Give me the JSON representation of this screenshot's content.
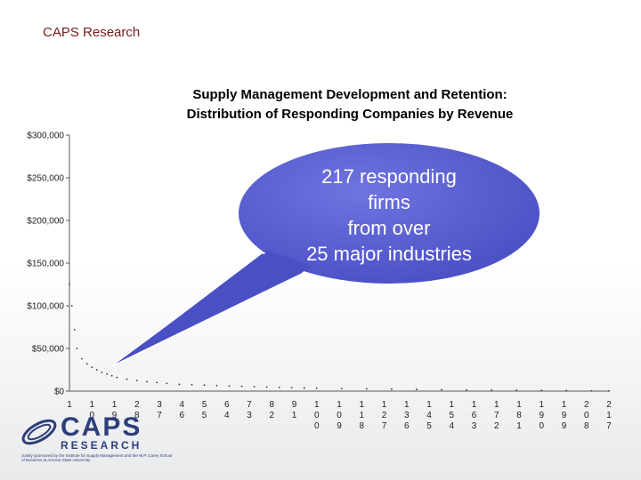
{
  "header": {
    "brand": "CAPS Research"
  },
  "callout": {
    "line1": "217 responding",
    "line2": "firms",
    "line3": "from over",
    "line4": "25 major industries"
  },
  "logo": {
    "word": "CAPS",
    "sub": "RESEARCH",
    "fine": "Jointly sponsored by the Institute for Supply Management and the W.P. Carey School of Business at Arizona State University"
  },
  "colors": {
    "bubble": "#4a4fc4",
    "header": "#7a1a1a",
    "logo": "#2c3e7b"
  },
  "chart_data": {
    "type": "scatter",
    "title": "Supply Management Development and Retention:",
    "subtitle": "Distribution of Responding Companies by Revenue",
    "xlabel": "",
    "ylabel": "",
    "ylim": [
      0,
      300000
    ],
    "y_ticks": [
      "$0",
      "$50,000",
      "$100,000",
      "$150,000",
      "$200,000",
      "$250,000",
      "$300,000"
    ],
    "y_tick_values": [
      0,
      50000,
      100000,
      150000,
      200000,
      250000,
      300000
    ],
    "xlim": [
      1,
      217
    ],
    "x_ticks": [
      "1",
      "10",
      "19",
      "28",
      "37",
      "46",
      "55",
      "64",
      "73",
      "82",
      "91",
      "100",
      "109",
      "118",
      "127",
      "136",
      "145",
      "154",
      "163",
      "172",
      "181",
      "190",
      "199",
      "208",
      "217"
    ],
    "x_tick_values": [
      1,
      10,
      19,
      28,
      37,
      46,
      55,
      64,
      73,
      82,
      91,
      100,
      109,
      118,
      127,
      136,
      145,
      154,
      163,
      172,
      181,
      190,
      199,
      208,
      217
    ],
    "grid": false,
    "legend": "none",
    "series": [
      {
        "x": [
          1,
          2,
          3,
          4,
          6,
          8,
          10,
          12,
          14,
          16,
          18,
          20,
          24,
          28,
          32,
          36,
          40,
          45,
          50,
          55,
          60,
          65,
          70,
          75,
          80,
          85,
          90,
          95,
          100,
          110,
          120,
          130,
          140,
          150,
          160,
          170,
          180,
          190,
          200,
          210,
          217
        ],
        "y": [
          125000,
          100000,
          72000,
          50000,
          38000,
          32000,
          28000,
          25000,
          22000,
          20000,
          18000,
          16000,
          14000,
          12500,
          11000,
          10000,
          9000,
          8000,
          7500,
          7000,
          6500,
          6000,
          5600,
          5200,
          4800,
          4400,
          4000,
          3700,
          3400,
          3000,
          2600,
          2300,
          2000,
          1700,
          1400,
          1200,
          1000,
          800,
          600,
          400,
          200
        ]
      }
    ]
  }
}
